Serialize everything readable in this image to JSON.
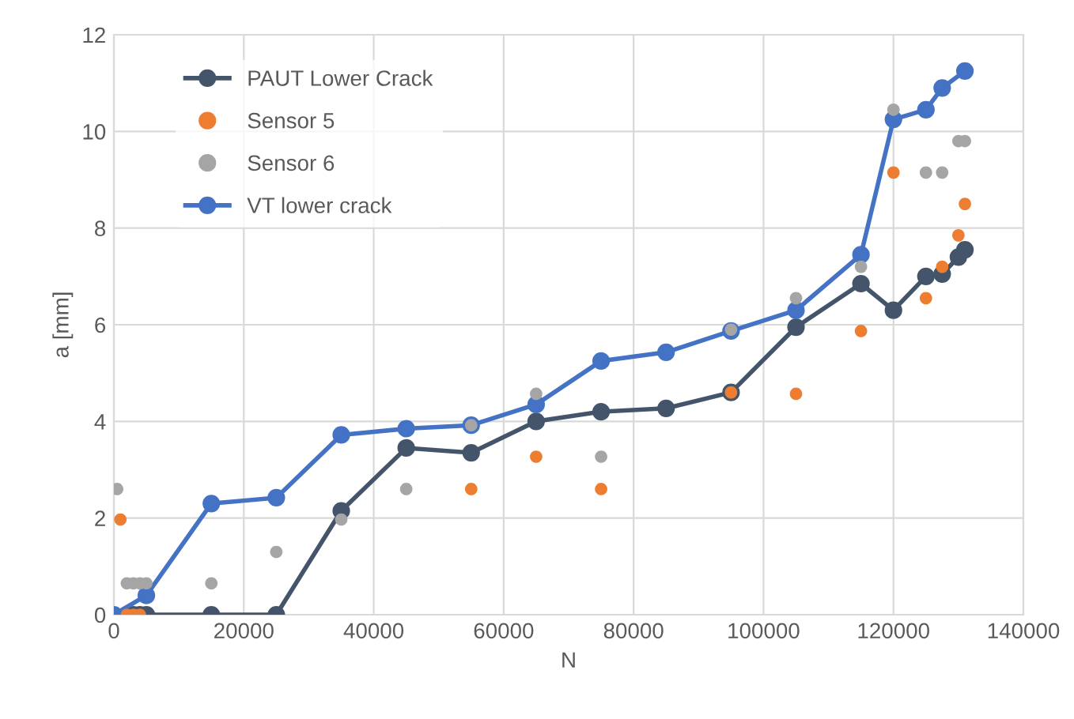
{
  "chart_data": {
    "type": "line",
    "xlabel": "N",
    "ylabel": "a [mm]",
    "xlim": [
      0,
      140000
    ],
    "xticks": [
      0,
      20000,
      40000,
      60000,
      80000,
      100000,
      120000,
      140000
    ],
    "ylim": [
      0,
      12
    ],
    "yticks": [
      0,
      2,
      4,
      6,
      8,
      10,
      12
    ],
    "grid": true,
    "legend": "top left",
    "marker": "circle",
    "series": [
      {
        "name": "PAUT Lower Crack",
        "color": "#44546a",
        "x": [
          2000,
          3000,
          4000,
          5000,
          15000,
          25000,
          35000,
          45000,
          55000,
          65000,
          75000,
          85000,
          95000,
          105000,
          115000,
          120000,
          125000,
          127500,
          130000,
          131000
        ],
        "values": [
          0,
          0,
          0,
          0,
          0,
          0,
          2.15,
          3.45,
          3.35,
          4.0,
          4.2,
          4.27,
          4.6,
          5.95,
          6.85,
          6.3,
          7.0,
          7.05,
          7.4,
          7.55
        ]
      },
      {
        "name": "Sensor 5",
        "type": "scatter",
        "color": "#ed7d31",
        "x": [
          1000,
          2000,
          3000,
          4000,
          55000,
          65000,
          75000,
          95000,
          105000,
          115000,
          120000,
          125000,
          127500,
          130000,
          131000
        ],
        "values": [
          1.97,
          0,
          0,
          0,
          2.6,
          3.27,
          2.6,
          4.6,
          4.57,
          5.87,
          9.15,
          6.55,
          7.2,
          7.85,
          8.5
        ]
      },
      {
        "name": "Sensor 6",
        "type": "scatter",
        "color": "#a5a5a5",
        "x": [
          500,
          2000,
          3000,
          4000,
          5000,
          15000,
          25000,
          35000,
          45000,
          55000,
          65000,
          75000,
          95000,
          105000,
          115000,
          120000,
          125000,
          127500,
          130000,
          131000
        ],
        "values": [
          2.6,
          0.65,
          0.65,
          0.65,
          0.65,
          0.65,
          1.3,
          1.97,
          2.6,
          3.92,
          4.57,
          3.27,
          5.9,
          6.55,
          7.2,
          10.45,
          9.15,
          9.15,
          9.8,
          9.8
        ]
      },
      {
        "name": "VT lower crack",
        "color": "#4472c4",
        "x": [
          0,
          5000,
          15000,
          25000,
          35000,
          45000,
          55000,
          65000,
          75000,
          85000,
          95000,
          105000,
          115000,
          120000,
          125000,
          127500,
          131000
        ],
        "values": [
          0,
          0.4,
          2.3,
          2.42,
          3.72,
          3.85,
          3.92,
          4.35,
          5.25,
          5.43,
          5.87,
          6.3,
          7.45,
          10.25,
          10.45,
          10.9,
          11.25
        ]
      }
    ]
  }
}
